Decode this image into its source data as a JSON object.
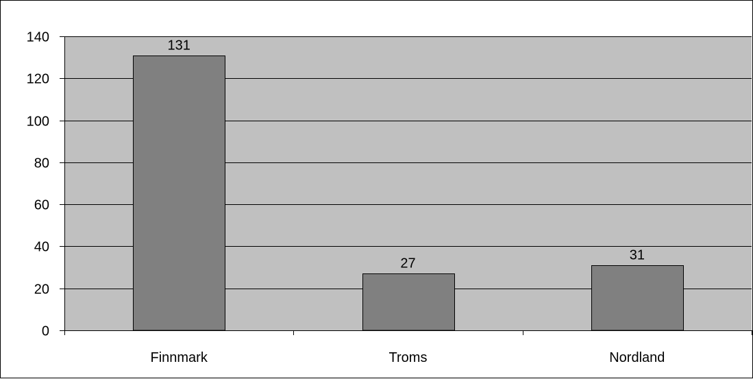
{
  "chart_data": {
    "type": "bar",
    "title": "",
    "xlabel": "",
    "ylabel": "",
    "categories": [
      "Finnmark",
      "Troms",
      "Nordland"
    ],
    "values": [
      131,
      27,
      31
    ],
    "data_labels": [
      "131",
      "27",
      "31"
    ],
    "ylim": [
      0,
      140
    ],
    "yticks": [
      0,
      20,
      40,
      60,
      80,
      100,
      120,
      140
    ],
    "ytick_labels": [
      "0",
      "20",
      "40",
      "60",
      "80",
      "100",
      "120",
      "140"
    ],
    "grid": true,
    "legend": "none",
    "colors": {
      "plot_background": "#c0c0c0",
      "bar_fill": "#808080",
      "bar_stroke": "#000000",
      "gridline": "#000000",
      "frame": "#000000"
    }
  }
}
